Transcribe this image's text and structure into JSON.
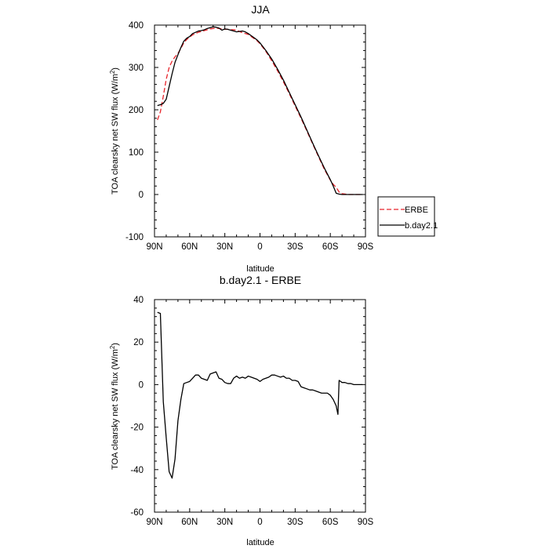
{
  "chart_data": [
    {
      "type": "line",
      "title": "JJA",
      "xlabel": "latitude",
      "ylabel": "TOA clearsky net SW flux (W/m",
      "ylabel_sup": "2",
      "ylabel_end": ")",
      "xlim": [
        90,
        -90
      ],
      "ylim": [
        -100,
        400
      ],
      "x_ticks": [
        90,
        60,
        30,
        0,
        -30,
        -60,
        -90
      ],
      "x_tick_labels": [
        "90N",
        "60N",
        "30N",
        "0",
        "30S",
        "60S",
        "90S"
      ],
      "y_ticks": [
        -100,
        0,
        100,
        200,
        300,
        400
      ],
      "y_tick_labels": [
        "-100",
        "0",
        "100",
        "200",
        "300",
        "400"
      ],
      "legend": "right",
      "series": [
        {
          "name": "ERBE",
          "color": "#e8232a",
          "dash": "dashed",
          "x": [
            87.5,
            85,
            82.5,
            80,
            77.5,
            75,
            72.5,
            70,
            67.5,
            65,
            62.5,
            60,
            57.5,
            55,
            52.5,
            50,
            47.5,
            45,
            42.5,
            40,
            37.5,
            35,
            32.5,
            30,
            27.5,
            25,
            22.5,
            20,
            17.5,
            15,
            12.5,
            10,
            7.5,
            5,
            2.5,
            0,
            -5,
            -10,
            -15,
            -20,
            -25,
            -30,
            -35,
            -40,
            -45,
            -50,
            -55,
            -60,
            -62.5,
            -65,
            -67.5,
            -70,
            -75,
            -80,
            -85,
            -87.5
          ],
          "y": [
            176,
            195,
            232,
            272,
            300,
            315,
            325,
            333,
            345,
            358,
            366,
            372,
            377,
            380,
            383,
            385,
            387,
            389,
            391,
            392,
            393,
            392,
            391,
            390,
            390,
            389,
            389,
            388,
            385,
            382,
            380,
            378,
            373,
            368,
            363,
            356,
            338,
            316,
            292,
            266,
            238,
            209,
            180,
            150,
            119,
            89,
            59,
            34,
            24,
            17,
            6,
            2,
            0,
            0,
            0,
            0
          ]
        },
        {
          "name": "b.day2.1",
          "color": "#000000",
          "dash": "solid",
          "x": [
            87.5,
            85,
            82.5,
            80,
            77.5,
            75,
            72.5,
            70,
            67.5,
            65,
            62.5,
            60,
            57.5,
            55,
            52.5,
            50,
            47.5,
            45,
            42.5,
            40,
            37.5,
            35,
            32.5,
            30,
            27.5,
            25,
            22.5,
            20,
            17.5,
            15,
            12.5,
            10,
            7.5,
            5,
            2.5,
            0,
            -5,
            -10,
            -15,
            -20,
            -25,
            -30,
            -35,
            -40,
            -45,
            -50,
            -55,
            -60,
            -62.5,
            -65,
            -67.5,
            -70,
            -75,
            -80,
            -85,
            -87.5
          ],
          "y": [
            210,
            212,
            215,
            225,
            255,
            285,
            312,
            330,
            347,
            362,
            369,
            373,
            380,
            383,
            386,
            387,
            389,
            392,
            394,
            396,
            395,
            393,
            388,
            391,
            390,
            388,
            386,
            384,
            385,
            386,
            384,
            380,
            375,
            370,
            365,
            358,
            340,
            320,
            296,
            270,
            241,
            212,
            183,
            152,
            121,
            91,
            62,
            35,
            20,
            3,
            1,
            0,
            0,
            0,
            0,
            0
          ]
        }
      ]
    },
    {
      "type": "line",
      "title": "b.day2.1 - ERBE",
      "xlabel": "latitude",
      "ylabel": "TOA clearsky net SW flux (W/m",
      "ylabel_sup": "2",
      "ylabel_end": ")",
      "xlim": [
        90,
        -90
      ],
      "ylim": [
        -60,
        40
      ],
      "x_ticks": [
        90,
        60,
        30,
        0,
        -30,
        -60,
        -90
      ],
      "x_tick_labels": [
        "90N",
        "60N",
        "30N",
        "0",
        "30S",
        "60S",
        "90S"
      ],
      "y_ticks": [
        -60,
        -40,
        -20,
        0,
        20,
        40
      ],
      "y_tick_labels": [
        "-60",
        "-40",
        "-20",
        "0",
        "20",
        "40"
      ],
      "series": [
        {
          "color": "#000000",
          "dash": "solid",
          "x": [
            87.5,
            85,
            82.5,
            80,
            77.5,
            75,
            72.5,
            70,
            67.5,
            65,
            62.5,
            60,
            57.5,
            55,
            52.5,
            50,
            47.5,
            45,
            42.5,
            40,
            37.5,
            35,
            32.5,
            30,
            27.5,
            25,
            22.5,
            20,
            17.5,
            15,
            12.5,
            10,
            7.5,
            5,
            2.5,
            0,
            -2.5,
            -5,
            -7.5,
            -10,
            -12.5,
            -15,
            -17.5,
            -20,
            -22.5,
            -25,
            -27.5,
            -30,
            -32.5,
            -35,
            -37.5,
            -40,
            -42.5,
            -45,
            -47.5,
            -50,
            -52.5,
            -55,
            -57.5,
            -60,
            -62.5,
            -65,
            -66.5,
            -67.5,
            -70,
            -72.5,
            -75,
            -77.5,
            -80,
            -82.5,
            -85,
            -87.5
          ],
          "y": [
            34,
            33.5,
            -8,
            -25,
            -41,
            -44,
            -35,
            -17,
            -7,
            0.5,
            1,
            1.5,
            3,
            4.5,
            4.5,
            3,
            2.5,
            2,
            5,
            5.5,
            6,
            3,
            2.5,
            1,
            0.5,
            0.5,
            3,
            4,
            3,
            3.5,
            3,
            4,
            3.5,
            3,
            2.5,
            1.5,
            2.5,
            3,
            3.5,
            4.5,
            4.5,
            4,
            3.5,
            4,
            3,
            3,
            2,
            2,
            1.5,
            -1,
            -1.5,
            -2,
            -2.5,
            -2.5,
            -3,
            -3.5,
            -4,
            -4,
            -4,
            -5,
            -7,
            -10,
            -14,
            2,
            1,
            1,
            0.5,
            0.5,
            0,
            0,
            0,
            0
          ]
        }
      ]
    }
  ]
}
